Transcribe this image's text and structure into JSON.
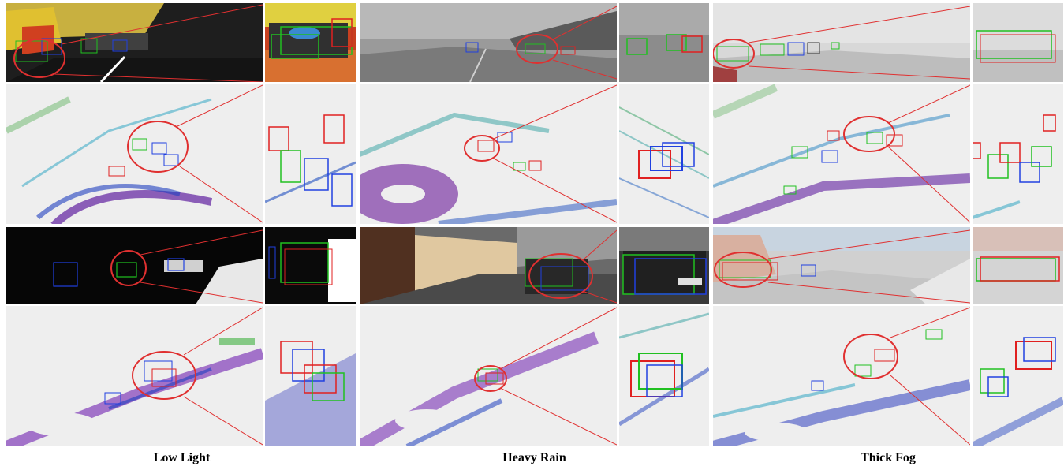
{
  "captions": {
    "low_light": "Low Light",
    "heavy_rain": "Heavy Rain",
    "thick_fog": "Thick Fog"
  },
  "colors": {
    "box_red": "#e02020",
    "box_green": "#20c020",
    "box_blue": "#2040e0",
    "zoom_line": "#e03030",
    "cloud_bg": "#eeeeee",
    "night_bg": "#060606",
    "rain_bg": "#8a8a8a",
    "fog_bg": "#cfcfcf"
  }
}
